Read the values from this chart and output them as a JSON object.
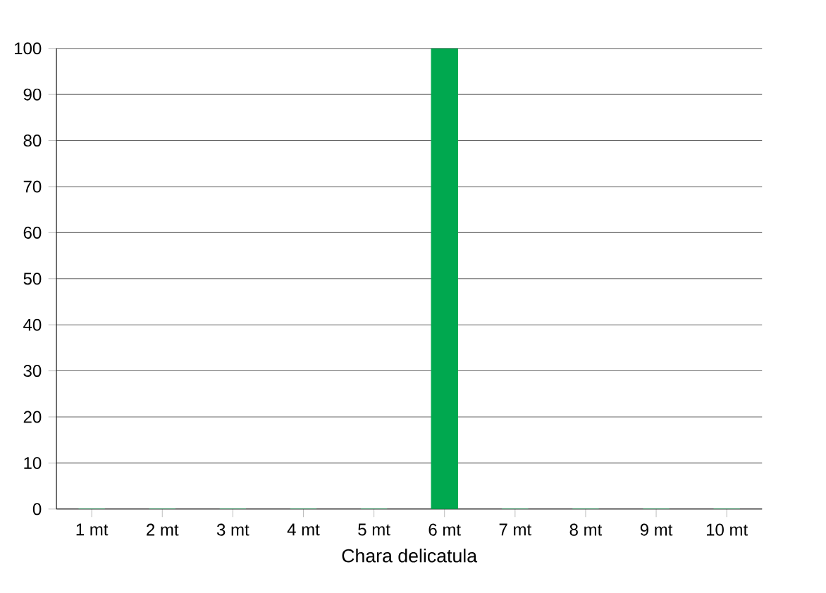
{
  "chart_data": {
    "type": "bar",
    "xlabel": "Chara delicatula",
    "categories": [
      "1 mt",
      "2 mt",
      "3 mt",
      "4 mt",
      "5 mt",
      "6 mt",
      "7 mt",
      "8 mt",
      "9 mt",
      "10 mt"
    ],
    "values": [
      0,
      0,
      0,
      0,
      0,
      100,
      0,
      0,
      0,
      0
    ],
    "color": "#00a84f",
    "ylim": [
      0,
      100
    ],
    "yticks": [
      0,
      10,
      20,
      30,
      40,
      50,
      60,
      70,
      80,
      90,
      100
    ],
    "grid": "y"
  }
}
